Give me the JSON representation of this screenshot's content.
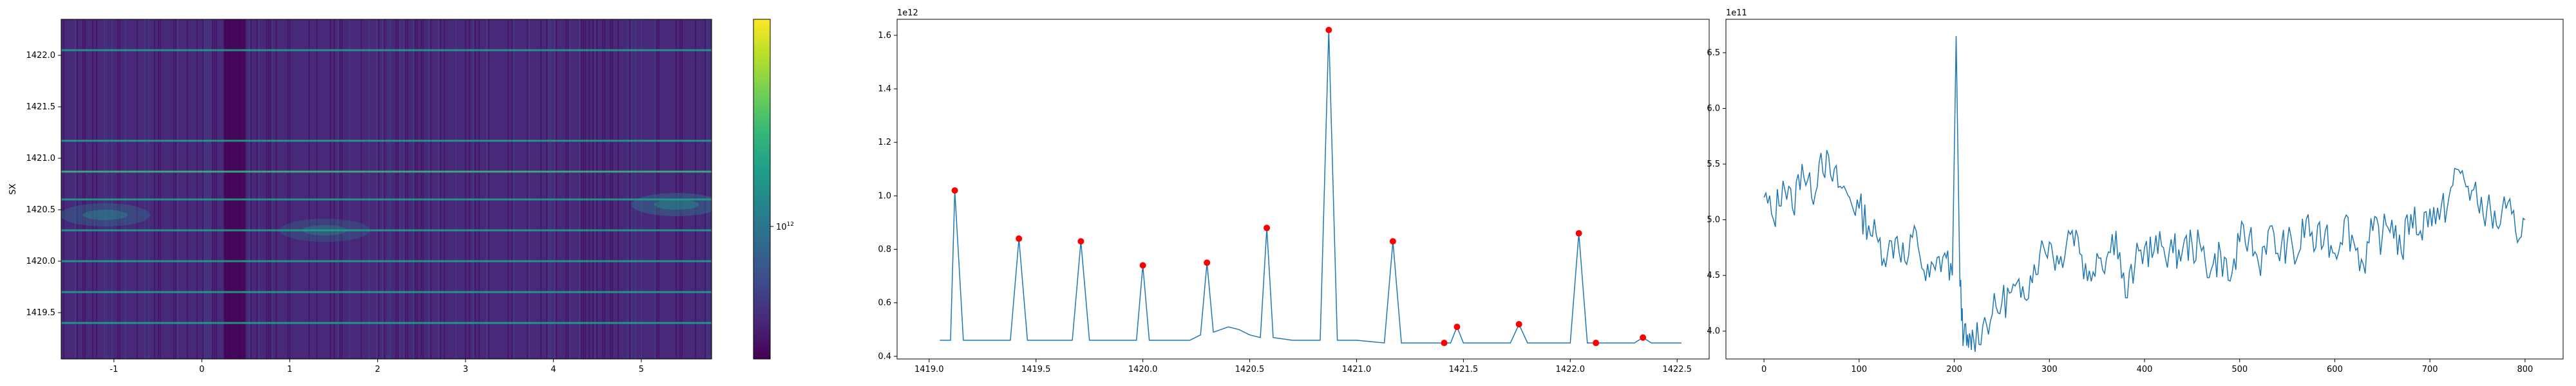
{
  "colors": {
    "line": "#1f77b4",
    "peak_marker": "#ff0000",
    "axes": "#000000",
    "viridis": [
      "#440154",
      "#482878",
      "#3e4a89",
      "#31688e",
      "#26828e",
      "#1f9e89",
      "#35b779",
      "#6ece58",
      "#b5de2b",
      "#fde725"
    ]
  },
  "chart_data": [
    {
      "type": "heatmap",
      "title": "",
      "xlabel": "",
      "ylabel": "SX",
      "xlim": [
        -1.6,
        5.8
      ],
      "ylim": [
        1419.05,
        1422.35
      ],
      "xticks": [
        -1,
        0,
        1,
        2,
        3,
        4,
        5
      ],
      "yticks": [
        1419.5,
        1420.0,
        1420.5,
        1421.0,
        1421.5,
        1422.0
      ],
      "ytick_labels": [
        "1419.5",
        "1420.0",
        "1420.5",
        "1421.0",
        "1421.5",
        "1422.0"
      ],
      "colorbar": {
        "scale": "log",
        "tick_label_base": "10",
        "tick_label_exp": "12",
        "colormap": "viridis"
      },
      "bright_rows": [
        1419.4,
        1419.7,
        1420.0,
        1420.3,
        1420.6,
        1420.87,
        1421.17,
        1422.05
      ],
      "diffuse_blobs": [
        {
          "x": -1.1,
          "y": 1420.45,
          "intensity": 0.35
        },
        {
          "x": 1.4,
          "y": 1420.3,
          "intensity": 0.3
        },
        {
          "x": 5.4,
          "y": 1420.55,
          "intensity": 0.4
        }
      ],
      "dark_band_x": [
        0.25,
        0.5
      ]
    },
    {
      "type": "line",
      "title": "",
      "xlabel": "",
      "ylabel": "",
      "offset_text": "1e12",
      "xlim": [
        1418.85,
        1422.65
      ],
      "ylim": [
        0.39,
        1.66
      ],
      "xticks": [
        1419.0,
        1419.5,
        1420.0,
        1420.5,
        1421.0,
        1421.5,
        1422.0,
        1422.5
      ],
      "xtick_labels": [
        "1419.0",
        "1419.5",
        "1420.0",
        "1420.5",
        "1421.0",
        "1421.5",
        "1422.0",
        "1422.5"
      ],
      "yticks": [
        0.4,
        0.6,
        0.8,
        1.0,
        1.2,
        1.4,
        1.6
      ],
      "ytick_labels": [
        "0.4",
        "0.6",
        "0.8",
        "1.0",
        "1.2",
        "1.4",
        "1.6"
      ],
      "x": [
        1419.05,
        1419.08,
        1419.1,
        1419.12,
        1419.16,
        1419.2,
        1419.3,
        1419.38,
        1419.42,
        1419.46,
        1419.55,
        1419.67,
        1419.71,
        1419.75,
        1419.85,
        1419.97,
        1420.0,
        1420.03,
        1420.15,
        1420.22,
        1420.27,
        1420.3,
        1420.33,
        1420.4,
        1420.45,
        1420.5,
        1420.55,
        1420.58,
        1420.61,
        1420.7,
        1420.83,
        1420.87,
        1420.91,
        1421.0,
        1421.13,
        1421.17,
        1421.21,
        1421.3,
        1421.38,
        1421.41,
        1421.44,
        1421.47,
        1421.5,
        1421.6,
        1421.72,
        1421.76,
        1421.8,
        1421.9,
        1422.0,
        1422.04,
        1422.08,
        1422.12,
        1422.2,
        1422.3,
        1422.34,
        1422.38,
        1422.45,
        1422.52
      ],
      "y": [
        0.46,
        0.46,
        0.46,
        1.02,
        0.46,
        0.46,
        0.46,
        0.46,
        0.84,
        0.46,
        0.46,
        0.46,
        0.83,
        0.46,
        0.46,
        0.46,
        0.74,
        0.46,
        0.46,
        0.46,
        0.48,
        0.75,
        0.49,
        0.51,
        0.5,
        0.48,
        0.47,
        0.88,
        0.47,
        0.46,
        0.46,
        1.62,
        0.46,
        0.46,
        0.45,
        0.83,
        0.45,
        0.45,
        0.45,
        0.45,
        0.45,
        0.51,
        0.45,
        0.45,
        0.45,
        0.52,
        0.45,
        0.45,
        0.45,
        0.86,
        0.45,
        0.45,
        0.45,
        0.45,
        0.47,
        0.45,
        0.45,
        0.45
      ],
      "peaks": [
        {
          "x": 1419.12,
          "y": 1.02
        },
        {
          "x": 1419.42,
          "y": 0.84
        },
        {
          "x": 1419.71,
          "y": 0.83
        },
        {
          "x": 1420.0,
          "y": 0.74
        },
        {
          "x": 1420.3,
          "y": 0.75
        },
        {
          "x": 1420.58,
          "y": 0.88
        },
        {
          "x": 1420.87,
          "y": 1.62
        },
        {
          "x": 1421.17,
          "y": 0.83
        },
        {
          "x": 1421.41,
          "y": 0.45
        },
        {
          "x": 1421.47,
          "y": 0.51
        },
        {
          "x": 1421.76,
          "y": 0.52
        },
        {
          "x": 1422.04,
          "y": 0.86
        },
        {
          "x": 1422.12,
          "y": 0.45
        },
        {
          "x": 1422.34,
          "y": 0.47
        }
      ]
    },
    {
      "type": "line",
      "title": "",
      "xlabel": "",
      "ylabel": "",
      "offset_text": "1e11",
      "xlim": [
        -40,
        840
      ],
      "ylim": [
        3.75,
        6.8
      ],
      "xticks": [
        0,
        100,
        200,
        300,
        400,
        500,
        600,
        700,
        800
      ],
      "xtick_labels": [
        "0",
        "100",
        "200",
        "300",
        "400",
        "500",
        "600",
        "700",
        "800"
      ],
      "yticks": [
        4.0,
        4.5,
        5.0,
        5.5,
        6.0,
        6.5
      ],
      "ytick_labels": [
        "4.0",
        "4.5",
        "5.0",
        "5.5",
        "6.0",
        "6.5"
      ],
      "x": [
        0,
        10,
        20,
        30,
        40,
        50,
        60,
        70,
        80,
        90,
        100,
        110,
        120,
        130,
        140,
        150,
        160,
        170,
        180,
        190,
        198,
        202,
        206,
        210,
        215,
        220,
        230,
        240,
        250,
        260,
        270,
        280,
        290,
        300,
        310,
        320,
        330,
        340,
        350,
        360,
        370,
        380,
        390,
        400,
        410,
        420,
        430,
        440,
        450,
        460,
        470,
        480,
        490,
        500,
        510,
        520,
        530,
        540,
        550,
        560,
        570,
        580,
        590,
        600,
        610,
        620,
        630,
        640,
        650,
        660,
        670,
        680,
        690,
        700,
        710,
        720,
        730,
        740,
        750,
        760,
        770,
        780,
        790,
        800
      ],
      "y": [
        5.2,
        5.0,
        5.35,
        5.1,
        5.5,
        5.2,
        5.6,
        5.4,
        5.3,
        5.2,
        5.1,
        4.95,
        4.8,
        4.7,
        4.85,
        4.6,
        4.9,
        4.45,
        4.55,
        4.7,
        4.5,
        6.65,
        4.4,
        3.95,
        3.85,
        3.95,
        4.05,
        4.15,
        4.25,
        4.35,
        4.3,
        4.5,
        4.7,
        4.8,
        4.6,
        4.9,
        4.85,
        4.45,
        4.7,
        4.65,
        4.9,
        4.3,
        4.6,
        4.75,
        4.72,
        4.75,
        4.7,
        4.73,
        4.78,
        4.72,
        4.55,
        4.7,
        4.45,
        4.8,
        4.85,
        4.6,
        4.9,
        4.7,
        4.8,
        4.65,
        5.0,
        4.75,
        4.9,
        4.7,
        5.0,
        4.8,
        4.6,
        4.9,
        4.85,
        5.0,
        4.7,
        5.05,
        4.9,
        5.1,
        5.0,
        5.2,
        5.45,
        5.3,
        5.15,
        5.1,
        4.95,
        5.1,
        4.9,
        5.0
      ]
    }
  ]
}
